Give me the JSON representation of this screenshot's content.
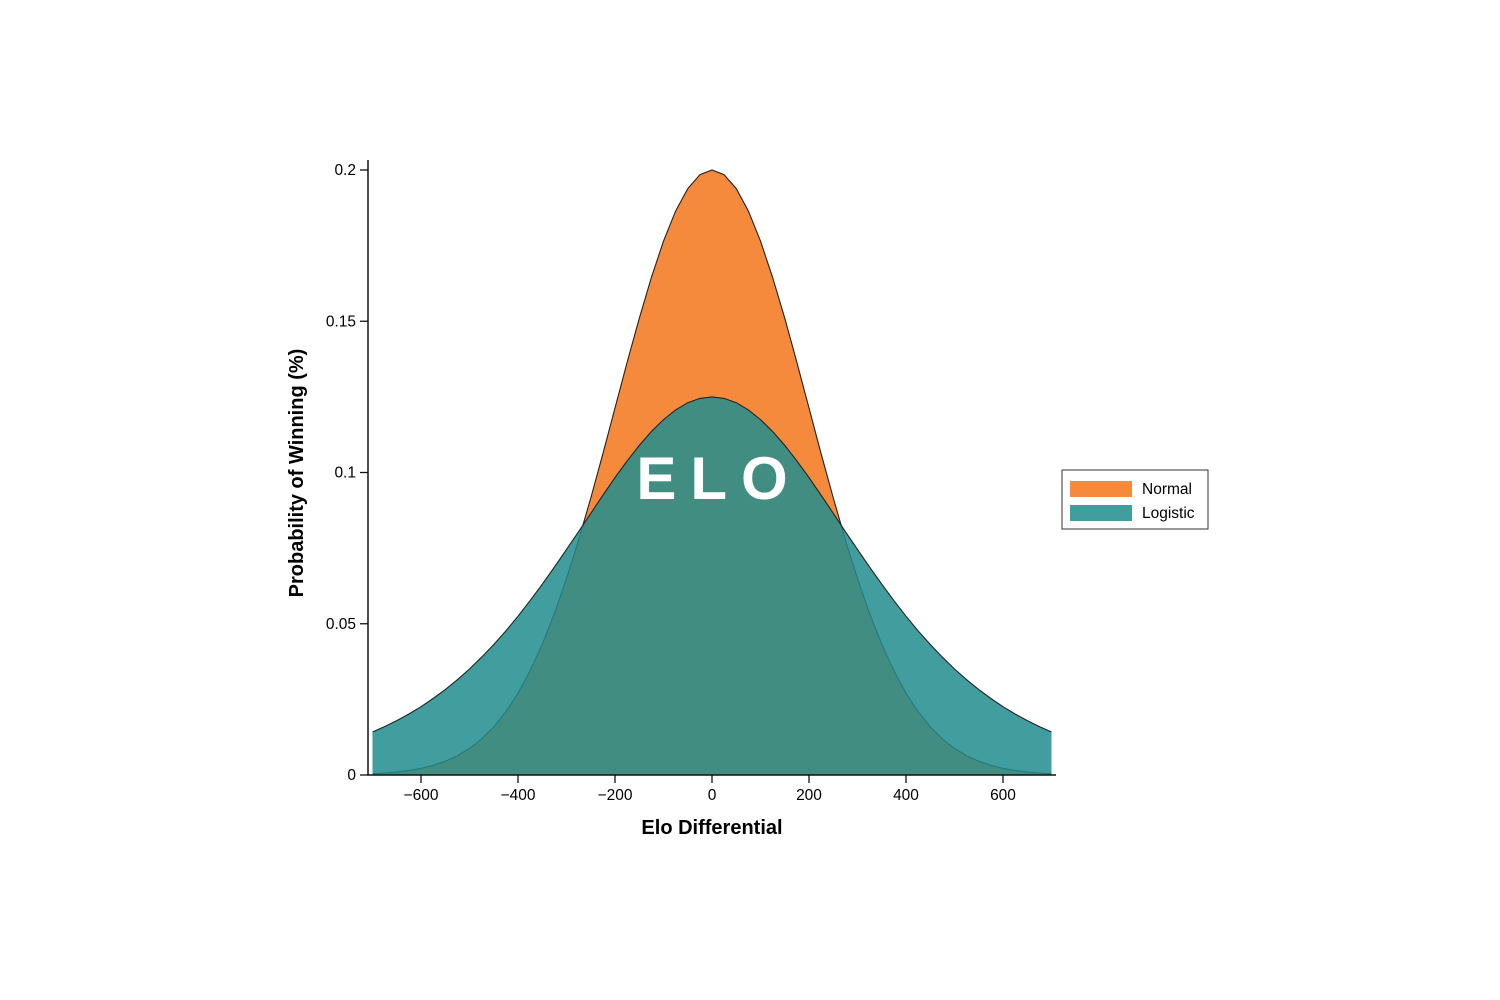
{
  "chart_data": {
    "type": "area",
    "title": "",
    "watermark": "ELO",
    "xlabel": "Elo Differential",
    "ylabel": "Probability of Winning (%)",
    "xlim": [
      -710,
      710
    ],
    "ylim": [
      0,
      0.2
    ],
    "xticks": [
      -600,
      -400,
      -200,
      0,
      200,
      400,
      600
    ],
    "xtick_labels": [
      "−600",
      "−400",
      "−200",
      "0",
      "200",
      "400",
      "600"
    ],
    "yticks": [
      0,
      0.05,
      0.1,
      0.15,
      0.2
    ],
    "ytick_labels": [
      "0",
      "0.05",
      "0.1",
      "0.15",
      "0.2"
    ],
    "grid": false,
    "stroke_color": "#222222",
    "axis_color": "#111111",
    "background_color": "#ffffff",
    "x": [
      -700,
      -675,
      -650,
      -625,
      -600,
      -575,
      -550,
      -525,
      -500,
      -475,
      -450,
      -425,
      -400,
      -375,
      -350,
      -325,
      -300,
      -275,
      -250,
      -225,
      -200,
      -175,
      -150,
      -125,
      -100,
      -75,
      -50,
      -25,
      0,
      25,
      50,
      75,
      100,
      125,
      150,
      175,
      200,
      225,
      250,
      275,
      300,
      325,
      350,
      375,
      400,
      425,
      450,
      475,
      500,
      525,
      550,
      575,
      600,
      625,
      650,
      675,
      700
    ],
    "series": [
      {
        "name": "Normal",
        "color": "#F58A3C",
        "fill_opacity": 1,
        "values": [
          0.00044,
          0.00067,
          0.00102,
          0.00152,
          0.00222,
          0.00321,
          0.00456,
          0.00637,
          0.00879,
          0.01192,
          0.01591,
          0.02092,
          0.02707,
          0.03448,
          0.04325,
          0.05341,
          0.06493,
          0.07771,
          0.09157,
          0.10622,
          0.12131,
          0.13639,
          0.15097,
          0.16451,
          0.1765,
          0.18642,
          0.19385,
          0.19844,
          0.2,
          0.19844,
          0.19385,
          0.18642,
          0.1765,
          0.16451,
          0.15097,
          0.13639,
          0.12131,
          0.10622,
          0.09157,
          0.07771,
          0.06493,
          0.05341,
          0.04325,
          0.03448,
          0.02707,
          0.02092,
          0.01591,
          0.01192,
          0.00879,
          0.00637,
          0.00456,
          0.00321,
          0.00222,
          0.00152,
          0.00102,
          0.00067,
          0.00044
        ]
      },
      {
        "name": "Logistic",
        "color": "#218D8D",
        "fill_opacity": 0.85,
        "values": [
          0.01423,
          0.016,
          0.01797,
          0.02016,
          0.02259,
          0.02528,
          0.02824,
          0.03149,
          0.03505,
          0.03893,
          0.04313,
          0.04765,
          0.0525,
          0.05764,
          0.06306,
          0.06873,
          0.07457,
          0.08044,
          0.08651,
          0.09249,
          0.09831,
          0.10382,
          0.10895,
          0.11354,
          0.1175,
          0.1207,
          0.12307,
          0.12451,
          0.125,
          0.12451,
          0.12307,
          0.1207,
          0.1175,
          0.11354,
          0.10895,
          0.10382,
          0.09831,
          0.09249,
          0.08651,
          0.08044,
          0.07457,
          0.06873,
          0.06306,
          0.05764,
          0.0525,
          0.04765,
          0.04313,
          0.03893,
          0.03505,
          0.03149,
          0.02824,
          0.02528,
          0.02259,
          0.02016,
          0.01797,
          0.016,
          0.01423
        ]
      }
    ],
    "legend": {
      "position": "right",
      "entries": [
        {
          "label": "Normal",
          "color": "#F58A3C",
          "fill_opacity": 1
        },
        {
          "label": "Logistic",
          "color": "#218D8D",
          "fill_opacity": 0.85
        }
      ]
    }
  }
}
